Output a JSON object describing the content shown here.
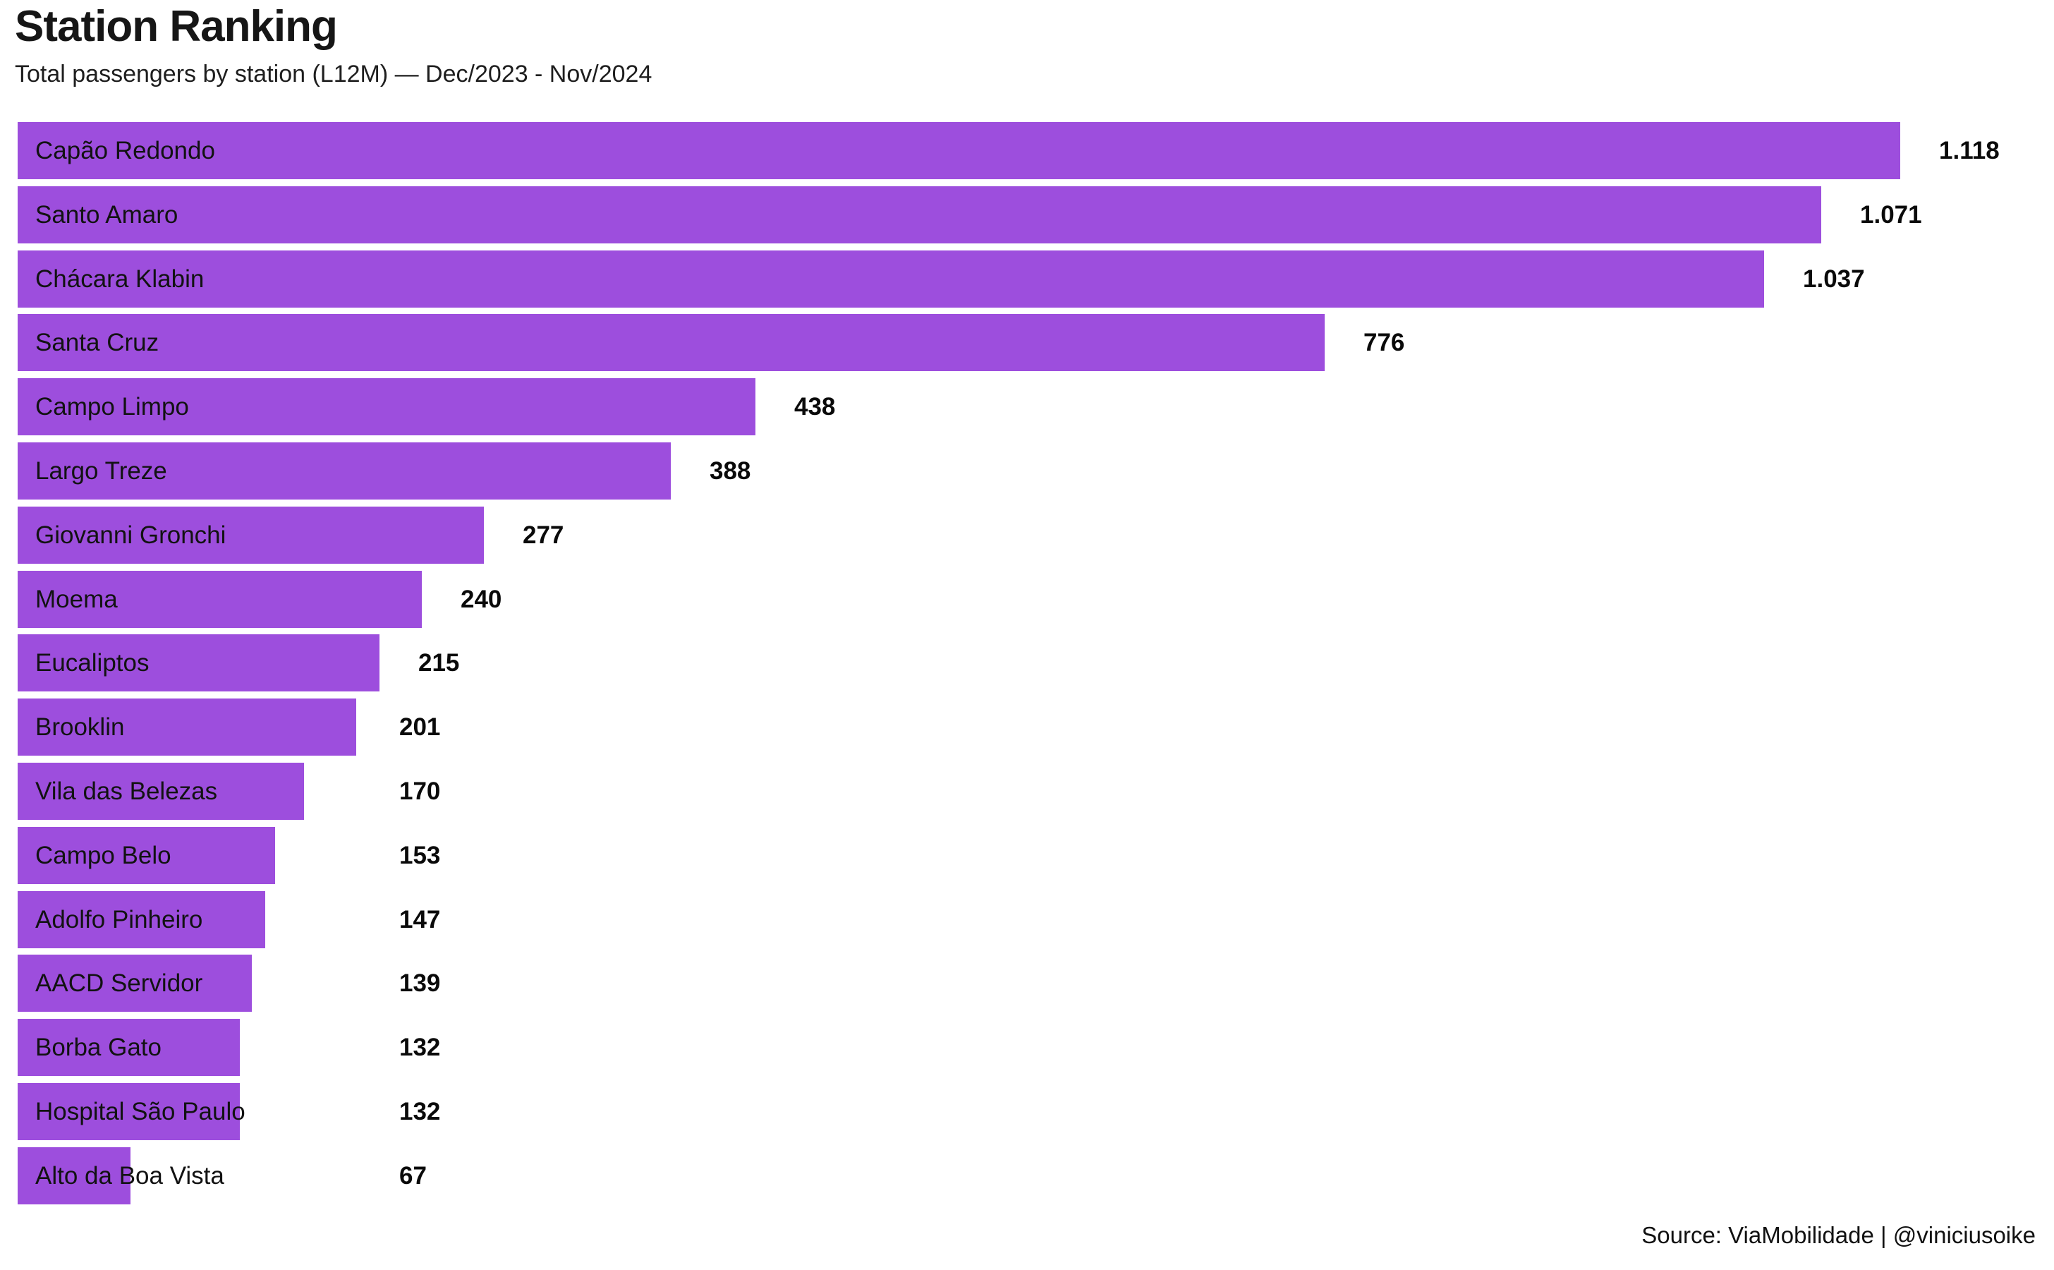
{
  "header": {
    "title": "Station Ranking",
    "subtitle": "Total passengers by station (L12M) — Dec/2023 - Nov/2024"
  },
  "footer": {
    "source": "Source: ViaMobilidade | @viniciusoike"
  },
  "colors": {
    "bar": "#9D4EDD",
    "bar_label_text": "#121212",
    "value_text": "#0a0a0a",
    "background": "#ffffff"
  },
  "chart_data": {
    "type": "bar",
    "orientation": "horizontal",
    "title": "Station Ranking",
    "subtitle": "Total passengers by station (L12M) — Dec/2023 - Nov/2024",
    "source": "Source: ViaMobilidade | @viniciusoike",
    "categories": [
      "Capão Redondo",
      "Santo Amaro",
      "Chácara Klabin",
      "Santa Cruz",
      "Campo Limpo",
      "Largo Treze",
      "Giovanni Gronchi",
      "Moema",
      "Eucaliptos",
      "Brooklin",
      "Vila das Belezas",
      "Campo Belo",
      "Adolfo Pinheiro",
      "AACD Servidor",
      "Borba Gato",
      "Hospital São Paulo",
      "Alto da Boa Vista"
    ],
    "values": [
      1118,
      1071,
      1037,
      776,
      438,
      388,
      277,
      240,
      215,
      201,
      170,
      153,
      147,
      139,
      132,
      132,
      67
    ],
    "value_labels": [
      "1.118",
      "1.071",
      "1.037",
      "776",
      "438",
      "388",
      "277",
      "240",
      "215",
      "201",
      "170",
      "153",
      "147",
      "139",
      "132",
      "132",
      "67"
    ],
    "xlim": [
      0,
      1180
    ],
    "grid": false,
    "legend": "none",
    "axes_shown": false,
    "category_label_position": "inside-bar-left",
    "value_label_position": "right-of-bar"
  }
}
